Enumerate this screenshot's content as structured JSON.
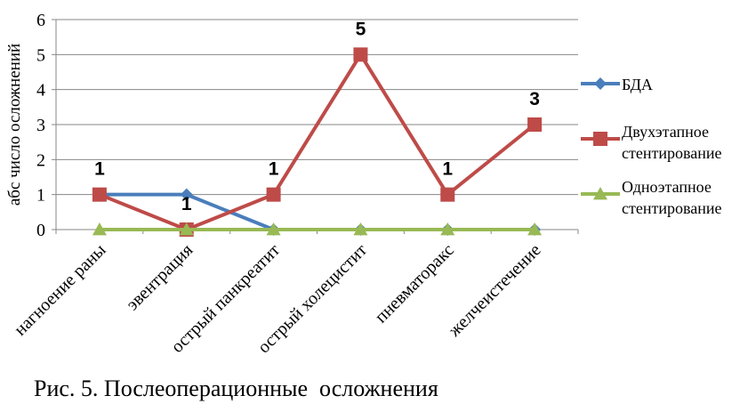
{
  "chart_data": {
    "type": "line",
    "title": "",
    "xlabel": "",
    "ylabel": "абс число осложнений",
    "ylim": [
      0,
      6
    ],
    "yticks": [
      "0",
      "1",
      "2",
      "3",
      "4",
      "5",
      "6"
    ],
    "categories": [
      "нагноение раны",
      "эвентрация",
      "острый панкреатит",
      "острый холецистит",
      "пневматоракс",
      "желчеистечение"
    ],
    "grid": "horizontal",
    "legend": "right",
    "series": [
      {
        "name": "БДА",
        "values": [
          1,
          1,
          0,
          0,
          0,
          0
        ],
        "color": "#4a7ebb",
        "marker": "diamond"
      },
      {
        "name": "Двухэтапное стентирование",
        "values": [
          1,
          0,
          1,
          5,
          1,
          3
        ],
        "color": "#be4b48",
        "marker": "square"
      },
      {
        "name": "Одноэтапное стентирование",
        "values": [
          0,
          0,
          0,
          0,
          0,
          0
        ],
        "color": "#98b954",
        "marker": "triangle"
      }
    ],
    "data_labels": [
      {
        "category": "нагноение раны",
        "text": "1"
      },
      {
        "category": "эвентрация",
        "text": "1"
      },
      {
        "category": "острый панкреатит",
        "text": "1"
      },
      {
        "category": "острый холецистит",
        "text": "5"
      },
      {
        "category": "пневматоракс",
        "text": "1"
      },
      {
        "category": "желчеистечение",
        "text": "3"
      }
    ]
  },
  "caption": "Рис. 5. Послеоперационные  осложнения"
}
